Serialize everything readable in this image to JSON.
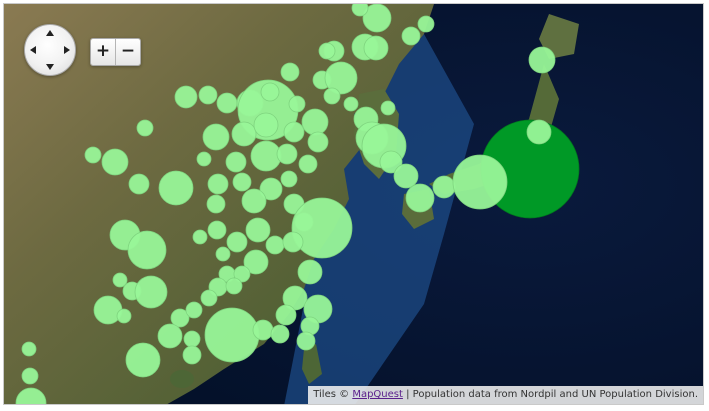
{
  "map": {
    "controls": {
      "pan": {
        "up": "arrow-up-icon",
        "down": "arrow-down-icon",
        "left": "arrow-left-icon",
        "right": "arrow-right-icon"
      },
      "zoom_in_label": "+",
      "zoom_out_label": "−"
    },
    "attribution": {
      "prefix": "Tiles ©",
      "link_text": "MapQuest",
      "separator": "|",
      "suffix": "Population data from Nordpil and UN Population Division."
    }
  },
  "style": {
    "bubble_fill": "#98f598",
    "bubble_stroke": "#7fd47f",
    "highlight_fill": "#009926",
    "highlight_stroke": "#007a1e",
    "ocean_deep": "#081633",
    "ocean_shelf": "#1e4f8c",
    "land": "#5c6a3c"
  },
  "markers_summary": {
    "highlighted_city": "largest bubble near Tokyo (dark green)"
  }
}
